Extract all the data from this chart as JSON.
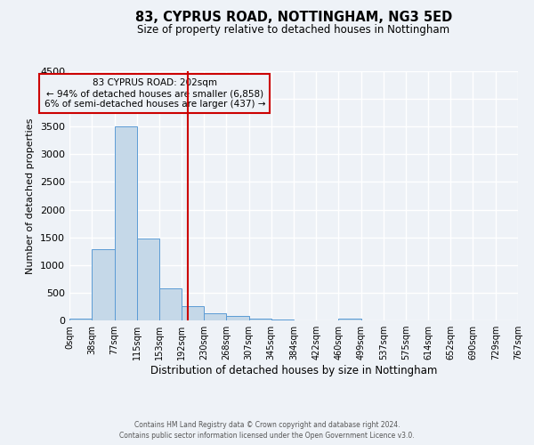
{
  "title": "83, CYPRUS ROAD, NOTTINGHAM, NG3 5ED",
  "subtitle": "Size of property relative to detached houses in Nottingham",
  "xlabel": "Distribution of detached houses by size in Nottingham",
  "ylabel": "Number of detached properties",
  "bin_edges": [
    0,
    38,
    77,
    115,
    153,
    192,
    230,
    268,
    307,
    345,
    384,
    422,
    460,
    499,
    537,
    575,
    614,
    652,
    690,
    729,
    767
  ],
  "bar_heights": [
    30,
    1280,
    3500,
    1480,
    580,
    250,
    130,
    75,
    30,
    20,
    5,
    0,
    30,
    0,
    0,
    0,
    0,
    0,
    0,
    0
  ],
  "bar_color": "#c5d8e8",
  "bar_edge_color": "#5b9bd5",
  "property_size": 202,
  "vline_color": "#cc0000",
  "annotation_box_color": "#cc0000",
  "annotation_lines": [
    "83 CYPRUS ROAD: 202sqm",
    "← 94% of detached houses are smaller (6,858)",
    "6% of semi-detached houses are larger (437) →"
  ],
  "ylim": [
    0,
    4500
  ],
  "yticks": [
    0,
    500,
    1000,
    1500,
    2000,
    2500,
    3000,
    3500,
    4000,
    4500
  ],
  "tick_labels": [
    "0sqm",
    "38sqm",
    "77sqm",
    "115sqm",
    "153sqm",
    "192sqm",
    "230sqm",
    "268sqm",
    "307sqm",
    "345sqm",
    "384sqm",
    "422sqm",
    "460sqm",
    "499sqm",
    "537sqm",
    "575sqm",
    "614sqm",
    "652sqm",
    "690sqm",
    "729sqm",
    "767sqm"
  ],
  "background_color": "#eef2f7",
  "grid_color": "#ffffff",
  "footer_lines": [
    "Contains HM Land Registry data © Crown copyright and database right 2024.",
    "Contains public sector information licensed under the Open Government Licence v3.0."
  ]
}
